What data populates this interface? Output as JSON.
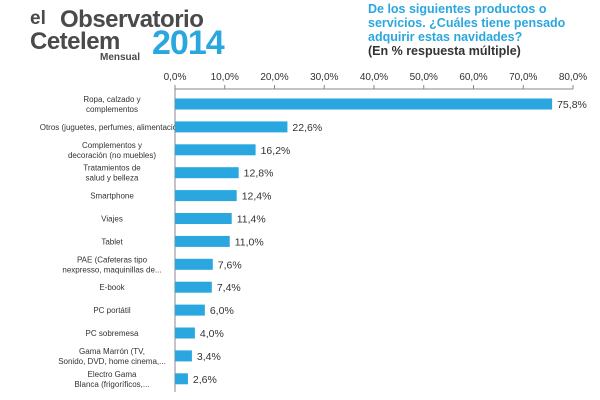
{
  "header": {
    "logo_el": "el",
    "logo_observatorio": "Observatorio",
    "logo_brand": "Cetelem",
    "logo_mensual": "Mensual",
    "logo_year": "2014",
    "question": "De los siguientes productos o servicios. ¿Cuáles tiene pensado adquirir estas navidades?",
    "subquestion": "(En % respuesta múltiple)"
  },
  "colors": {
    "bar": "#2aa7df",
    "accent": "#2aa7df",
    "text": "#333333"
  },
  "chart_data": {
    "type": "bar",
    "orientation": "horizontal",
    "categories": [
      [
        "Ropa, calzado y",
        "complementos"
      ],
      [
        "Otros (juguetes, perfumes, alimentación)"
      ],
      [
        "Complementos y",
        "decoración (no muebles)"
      ],
      [
        "Tratamientos de",
        "salud y belleza"
      ],
      [
        "Smartphone"
      ],
      [
        "Viajes"
      ],
      [
        "Tablet"
      ],
      [
        "PAE (Cafeteras tipo",
        "nexpresso, maquinillas de..."
      ],
      [
        "E-book"
      ],
      [
        "PC portátil"
      ],
      [
        "PC sobremesa"
      ],
      [
        "Gama Marrón (TV,",
        "Sonido, DVD, home cinema,..."
      ],
      [
        "Electro Gama",
        "Blanca (frigoríficos,..."
      ]
    ],
    "values": [
      75.8,
      22.6,
      16.2,
      12.8,
      12.4,
      11.4,
      11.0,
      7.6,
      7.4,
      6.0,
      4.0,
      3.4,
      2.6
    ],
    "value_labels": [
      "75,8%",
      "22,6%",
      "16,2%",
      "12,8%",
      "12,4%",
      "11,4%",
      "11,0%",
      "7,6%",
      "7,4%",
      "6,0%",
      "4,0%",
      "3,4%",
      "2,6%"
    ],
    "xlim": [
      0,
      80
    ],
    "xticks": [
      "0,0%",
      "10,0%",
      "20,0%",
      "30,0%",
      "40,0%",
      "50,0%",
      "60,0%",
      "70,0%",
      "80,0%"
    ],
    "grid": false,
    "xaxis_position": "top"
  }
}
